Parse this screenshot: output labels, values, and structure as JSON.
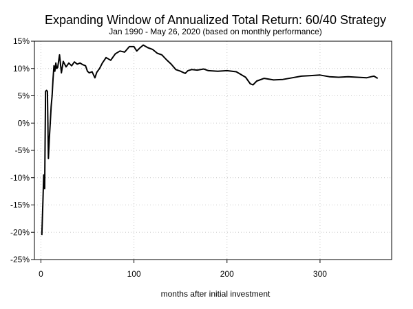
{
  "chart_data": {
    "type": "line",
    "title": "Expanding Window of Annualized Total Return: 60/40 Strategy",
    "subtitle": "Jan 1990 - May 26, 2020 (based on monthly performance)",
    "xlabel": "months after initial investment",
    "ylabel": "",
    "xlim": [
      -7,
      377
    ],
    "ylim": [
      -25,
      15
    ],
    "x_ticks": [
      0,
      100,
      200,
      300
    ],
    "y_ticks": [
      15,
      10,
      5,
      0,
      -5,
      -10,
      -15,
      -20,
      -25
    ],
    "y_tick_labels": [
      "15%",
      "10%",
      "5%",
      "0%",
      "-5%",
      "-10%",
      "-15%",
      "-20%",
      "-25%"
    ],
    "grid": true,
    "series_color": "#000000",
    "series": [
      {
        "name": "",
        "x": [
          1,
          2,
          3,
          4,
          5,
          6,
          7,
          8,
          9,
          10,
          11,
          12,
          13,
          14,
          15,
          16,
          17,
          18,
          20,
          22,
          24,
          27,
          30,
          33,
          36,
          39,
          42,
          45,
          48,
          50,
          52,
          55,
          58,
          60,
          63,
          66,
          70,
          75,
          80,
          85,
          90,
          95,
          100,
          103,
          106,
          110,
          115,
          120,
          125,
          130,
          135,
          140,
          145,
          150,
          155,
          158,
          162,
          168,
          175,
          180,
          190,
          200,
          210,
          220,
          225,
          228,
          232,
          240,
          250,
          260,
          270,
          280,
          290,
          300,
          310,
          320,
          330,
          340,
          350,
          355,
          358,
          360,
          362
        ],
        "y": [
          -20.5,
          -15,
          -9.5,
          -12,
          5.8,
          6,
          5.8,
          -6.5,
          -3,
          0,
          3,
          5,
          8,
          10.5,
          9.5,
          11,
          10,
          10.2,
          12.5,
          9.2,
          11.3,
          10.3,
          11,
          10.5,
          11.2,
          10.8,
          11,
          10.7,
          10.5,
          9.5,
          9.2,
          9.4,
          8.3,
          9.3,
          10,
          11,
          12,
          11.5,
          12.7,
          13.2,
          13,
          14,
          14,
          13.2,
          13.7,
          14.3,
          13.8,
          13.5,
          12.8,
          12.5,
          11.6,
          10.8,
          9.8,
          9.5,
          9.1,
          9.6,
          9.8,
          9.7,
          9.9,
          9.6,
          9.5,
          9.6,
          9.4,
          8.4,
          7.2,
          7,
          7.7,
          8.2,
          7.9,
          8,
          8.3,
          8.6,
          8.7,
          8.8,
          8.5,
          8.4,
          8.5,
          8.4,
          8.3,
          8.5,
          8.6,
          8.4,
          8.2
        ]
      }
    ]
  }
}
